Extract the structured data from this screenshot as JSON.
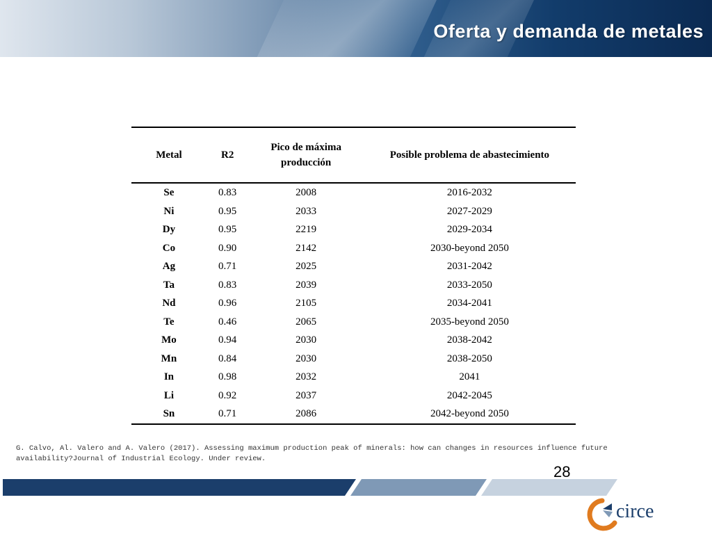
{
  "header": {
    "title": "Oferta y demanda de metales"
  },
  "table": {
    "columns": [
      "Metal",
      "R2",
      "Pico de máxima producción",
      "Posible problema de abastecimiento"
    ],
    "rows": [
      [
        "Se",
        "0.83",
        "2008",
        "2016-2032"
      ],
      [
        "Ni",
        "0.95",
        "2033",
        "2027-2029"
      ],
      [
        "Dy",
        "0.95",
        "2219",
        "2029-2034"
      ],
      [
        "Co",
        "0.90",
        "2142",
        "2030-beyond 2050"
      ],
      [
        "Ag",
        "0.71",
        "2025",
        "2031-2042"
      ],
      [
        "Ta",
        "0.83",
        "2039",
        "2033-2050"
      ],
      [
        "Nd",
        "0.96",
        "2105",
        "2034-2041"
      ],
      [
        "Te",
        "0.46",
        "2065",
        "2035-beyond 2050"
      ],
      [
        "Mo",
        "0.94",
        "2030",
        "2038-2042"
      ],
      [
        "Mn",
        "0.84",
        "2030",
        "2038-2050"
      ],
      [
        "In",
        "0.98",
        "2032",
        "2041"
      ],
      [
        "Li",
        "0.92",
        "2037",
        "2042-2045"
      ],
      [
        "Sn",
        "0.71",
        "2086",
        "2042-beyond 2050"
      ]
    ]
  },
  "citation": {
    "line1": "G. Calvo, Al. Valero and A. Valero (2017). Assessing maximum production peak of minerals: how can changes in resources influence future",
    "line2": "availability?Journal of Industrial Ecology. Under review."
  },
  "footer": {
    "page_number": "28",
    "logo_text": "circe",
    "colors": {
      "navy": "#1b3e6b",
      "steel": "#7f99b6",
      "light": "#c6d2df",
      "orange": "#e07b1f"
    }
  }
}
